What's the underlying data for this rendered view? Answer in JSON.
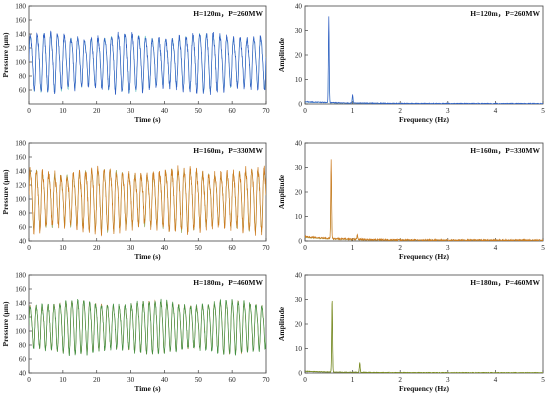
{
  "chart_data": [
    {
      "id": "time_1",
      "type": "line",
      "annotation": "H=120m，P=260MW",
      "xlabel": "Time (s)",
      "ylabel": "Pressure (μm)",
      "xlim": [
        0,
        70
      ],
      "ylim": [
        40,
        180
      ],
      "xticks": [
        "0",
        "10",
        "20",
        "30",
        "40",
        "50",
        "60",
        "70"
      ],
      "yticks": [
        "60",
        "80",
        "100",
        "120",
        "140",
        "160",
        "180"
      ],
      "series": [
        {
          "color": "#2f5dc2",
          "overlay_color": "#5fbfbf",
          "freq_hz": 0.5,
          "mean": 102,
          "amplitude": 36,
          "harmonic_ratio": 0.18,
          "noise": 5
        }
      ]
    },
    {
      "id": "fft_1",
      "type": "line",
      "annotation": "H=120m，P=260MW",
      "xlabel": "Frequency (Hz)",
      "ylabel": "Amplitude",
      "xlim": [
        0,
        5
      ],
      "ylim": [
        0,
        40
      ],
      "xticks": [
        "0",
        "1",
        "2",
        "3",
        "4",
        "5"
      ],
      "yticks": [
        "0",
        "10",
        "20",
        "30",
        "40"
      ],
      "series": [
        {
          "color": "#2f5dc2",
          "overlay_color": "#5fbfbf",
          "peaks": [
            {
              "f": 0.5,
              "a": 35
            },
            {
              "f": 1.0,
              "a": 3.5
            }
          ],
          "floor": 0.8
        }
      ]
    },
    {
      "id": "time_2",
      "type": "line",
      "annotation": "H=160m，P=330MW",
      "xlabel": "Time (s)",
      "ylabel": "Pressure (μm)",
      "xlim": [
        0,
        70
      ],
      "ylim": [
        40,
        180
      ],
      "xticks": [
        "0",
        "10",
        "20",
        "30",
        "40",
        "50",
        "60",
        "70"
      ],
      "yticks": [
        "40",
        "60",
        "80",
        "100",
        "120",
        "140",
        "160",
        "180"
      ],
      "series": [
        {
          "color": "#cc7a1f",
          "overlay_color": "#8aa046",
          "freq_hz": 0.55,
          "mean": 102,
          "amplitude": 38,
          "harmonic_ratio": 0.2,
          "noise": 7
        }
      ]
    },
    {
      "id": "fft_2",
      "type": "line",
      "annotation": "H=160m，P=330MW",
      "xlabel": "Frequency (Hz)",
      "ylabel": "Amplitude",
      "xlim": [
        0,
        5
      ],
      "ylim": [
        0,
        40
      ],
      "xticks": [
        "0",
        "1",
        "2",
        "3",
        "4",
        "5"
      ],
      "yticks": [
        "0",
        "10",
        "20",
        "30",
        "40"
      ],
      "series": [
        {
          "color": "#cc7a1f",
          "overlay_color": "#8aa046",
          "peaks": [
            {
              "f": 0.55,
              "a": 32
            },
            {
              "f": 1.1,
              "a": 2
            }
          ],
          "floor": 1.5
        }
      ]
    },
    {
      "id": "time_3",
      "type": "line",
      "annotation": "H=180m，P=460MW",
      "xlabel": "Time (s)",
      "ylabel": "Pressure (μm)",
      "xlim": [
        0,
        70
      ],
      "ylim": [
        40,
        180
      ],
      "xticks": [
        "0",
        "10",
        "20",
        "30",
        "40",
        "50",
        "60",
        "70"
      ],
      "yticks": [
        "40",
        "60",
        "80",
        "100",
        "120",
        "140",
        "160",
        "180"
      ],
      "series": [
        {
          "color": "#3f8f3f",
          "overlay_color": "#b07c3a",
          "freq_hz": 0.57,
          "mean": 108,
          "amplitude": 33,
          "harmonic_ratio": 0.15,
          "noise": 4
        }
      ]
    },
    {
      "id": "fft_3",
      "type": "line",
      "annotation": "H=180m，P=460MW",
      "xlabel": "Frequency (Hz)",
      "ylabel": "Amplitude",
      "xlim": [
        0,
        5
      ],
      "ylim": [
        0,
        40
      ],
      "xticks": [
        "0",
        "1",
        "2",
        "3",
        "4",
        "5"
      ],
      "yticks": [
        "0",
        "10",
        "20",
        "30",
        "40"
      ],
      "series": [
        {
          "color": "#7a8a1e",
          "overlay_color": "#4a7a3a",
          "peaks": [
            {
              "f": 0.57,
              "a": 30
            },
            {
              "f": 1.15,
              "a": 4
            }
          ],
          "floor": 0.6
        }
      ]
    }
  ]
}
